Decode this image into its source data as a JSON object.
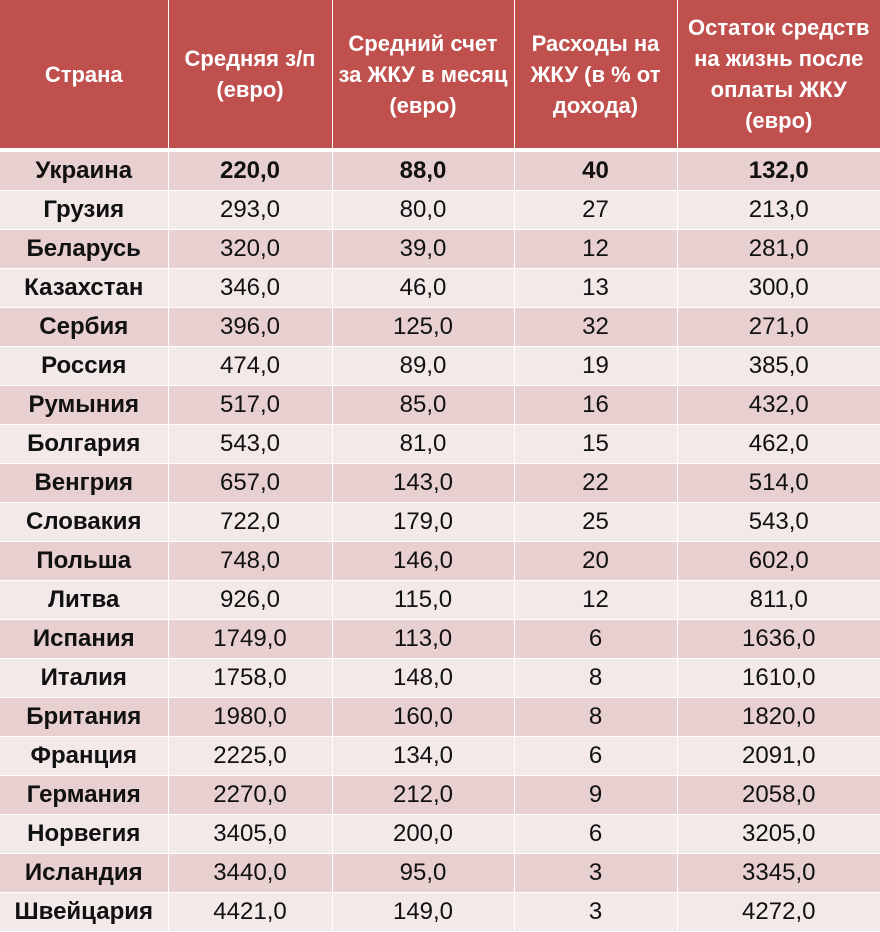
{
  "table": {
    "headers": [
      "Страна",
      "Средняя з/п (евро)",
      "Средний счет за ЖКУ в месяц (евро)",
      "Расходы на ЖКУ (в % от дохода)",
      "Остаток средств на жизнь после оплаты ЖКУ (евро)"
    ],
    "rows": [
      [
        "Украина",
        "220,0",
        "88,0",
        "40",
        "132,0"
      ],
      [
        "Грузия",
        "293,0",
        "80,0",
        "27",
        "213,0"
      ],
      [
        "Беларусь",
        "320,0",
        "39,0",
        "12",
        "281,0"
      ],
      [
        "Казахстан",
        "346,0",
        "46,0",
        "13",
        "300,0"
      ],
      [
        "Сербия",
        "396,0",
        "125,0",
        "32",
        "271,0"
      ],
      [
        "Россия",
        "474,0",
        "89,0",
        "19",
        "385,0"
      ],
      [
        "Румыния",
        "517,0",
        "85,0",
        "16",
        "432,0"
      ],
      [
        "Болгария",
        "543,0",
        "81,0",
        "15",
        "462,0"
      ],
      [
        "Венгрия",
        "657,0",
        "143,0",
        "22",
        "514,0"
      ],
      [
        "Словакия",
        "722,0",
        "179,0",
        "25",
        "543,0"
      ],
      [
        "Польша",
        "748,0",
        "146,0",
        "20",
        "602,0"
      ],
      [
        "Литва",
        "926,0",
        "115,0",
        "12",
        "811,0"
      ],
      [
        "Испания",
        "1749,0",
        "113,0",
        "6",
        "1636,0"
      ],
      [
        "Италия",
        "1758,0",
        "148,0",
        "8",
        "1610,0"
      ],
      [
        "Британия",
        "1980,0",
        "160,0",
        "8",
        "1820,0"
      ],
      [
        "Франция",
        "2225,0",
        "134,0",
        "6",
        "2091,0"
      ],
      [
        "Германия",
        "2270,0",
        "212,0",
        "9",
        "2058,0"
      ],
      [
        "Норвегия",
        "3405,0",
        "200,0",
        "6",
        "3205,0"
      ],
      [
        "Исландия",
        "3440,0",
        "95,0",
        "3",
        "3345,0"
      ],
      [
        "Швейцария",
        "4421,0",
        "149,0",
        "3",
        "4272,0"
      ]
    ]
  },
  "colors": {
    "header_bg": "#c0504d",
    "header_text": "#ffffff",
    "row_odd_bg": "#e8d0d0",
    "row_even_bg": "#f4e9e9"
  }
}
